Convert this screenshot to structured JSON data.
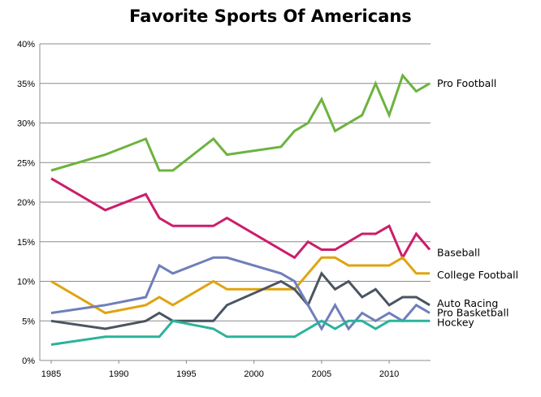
{
  "chart_data": {
    "type": "line",
    "title": "Favorite Sports Of Americans",
    "xlabel": "",
    "ylabel": "",
    "xlim": [
      1985,
      2013
    ],
    "ylim": [
      0,
      40
    ],
    "x_ticks": [
      1985,
      1990,
      1995,
      2000,
      2005,
      2010
    ],
    "y_ticks": [
      0,
      5,
      10,
      15,
      20,
      25,
      30,
      35,
      40
    ],
    "y_tick_format": "percent",
    "grid": {
      "horizontal": true,
      "vertical": false
    },
    "legend": "inline-right",
    "series": [
      {
        "name": "Pro Football",
        "color": "#6db33f",
        "points": [
          [
            1985,
            24
          ],
          [
            1989,
            26
          ],
          [
            1992,
            28
          ],
          [
            1993,
            24
          ],
          [
            1994,
            24
          ],
          [
            1997,
            28
          ],
          [
            1998,
            26
          ],
          [
            2002,
            27
          ],
          [
            2003,
            29
          ],
          [
            2004,
            30
          ],
          [
            2005,
            33
          ],
          [
            2006,
            29
          ],
          [
            2008,
            31
          ],
          [
            2009,
            35
          ],
          [
            2010,
            31
          ],
          [
            2011,
            36
          ],
          [
            2012,
            34
          ],
          [
            2013,
            35
          ]
        ]
      },
      {
        "name": "Baseball",
        "color": "#cc1d6b",
        "points": [
          [
            1985,
            23
          ],
          [
            1989,
            19
          ],
          [
            1992,
            21
          ],
          [
            1993,
            18
          ],
          [
            1994,
            17
          ],
          [
            1997,
            17
          ],
          [
            1998,
            18
          ],
          [
            2003,
            13
          ],
          [
            2004,
            15
          ],
          [
            2005,
            14
          ],
          [
            2006,
            14
          ],
          [
            2008,
            16
          ],
          [
            2009,
            16
          ],
          [
            2010,
            17
          ],
          [
            2011,
            13
          ],
          [
            2012,
            16
          ],
          [
            2013,
            14
          ]
        ]
      },
      {
        "name": "College Football",
        "color": "#e0a30f",
        "points": [
          [
            1985,
            10
          ],
          [
            1989,
            6
          ],
          [
            1992,
            7
          ],
          [
            1993,
            8
          ],
          [
            1994,
            7
          ],
          [
            1997,
            10
          ],
          [
            1998,
            9
          ],
          [
            2003,
            9
          ],
          [
            2005,
            13
          ],
          [
            2006,
            13
          ],
          [
            2007,
            12
          ],
          [
            2010,
            12
          ],
          [
            2011,
            13
          ],
          [
            2012,
            11
          ],
          [
            2013,
            11
          ]
        ]
      },
      {
        "name": "Auto Racing",
        "color": "#4a5562",
        "points": [
          [
            1985,
            5
          ],
          [
            1989,
            4
          ],
          [
            1992,
            5
          ],
          [
            1993,
            6
          ],
          [
            1994,
            5
          ],
          [
            1997,
            5
          ],
          [
            1998,
            7
          ],
          [
            2002,
            10
          ],
          [
            2003,
            9
          ],
          [
            2004,
            7
          ],
          [
            2005,
            11
          ],
          [
            2006,
            9
          ],
          [
            2007,
            10
          ],
          [
            2008,
            8
          ],
          [
            2009,
            9
          ],
          [
            2010,
            7
          ],
          [
            2011,
            8
          ],
          [
            2012,
            8
          ],
          [
            2013,
            7
          ]
        ]
      },
      {
        "name": "Pro Basketball",
        "color": "#6f7fba",
        "points": [
          [
            1985,
            6
          ],
          [
            1989,
            7
          ],
          [
            1992,
            8
          ],
          [
            1993,
            12
          ],
          [
            1994,
            11
          ],
          [
            1997,
            13
          ],
          [
            1998,
            13
          ],
          [
            2002,
            11
          ],
          [
            2003,
            10
          ],
          [
            2004,
            7
          ],
          [
            2005,
            4
          ],
          [
            2006,
            7
          ],
          [
            2007,
            4
          ],
          [
            2008,
            6
          ],
          [
            2009,
            5
          ],
          [
            2010,
            6
          ],
          [
            2011,
            5
          ],
          [
            2012,
            7
          ],
          [
            2013,
            6
          ]
        ]
      },
      {
        "name": "Hockey",
        "color": "#2bb39b",
        "points": [
          [
            1985,
            2
          ],
          [
            1989,
            3
          ],
          [
            1992,
            3
          ],
          [
            1993,
            3
          ],
          [
            1994,
            5
          ],
          [
            1997,
            4
          ],
          [
            1998,
            3
          ],
          [
            2003,
            3
          ],
          [
            2005,
            5
          ],
          [
            2006,
            4
          ],
          [
            2007,
            5
          ],
          [
            2008,
            5
          ],
          [
            2009,
            4
          ],
          [
            2010,
            5
          ],
          [
            2013,
            5
          ]
        ]
      }
    ]
  }
}
